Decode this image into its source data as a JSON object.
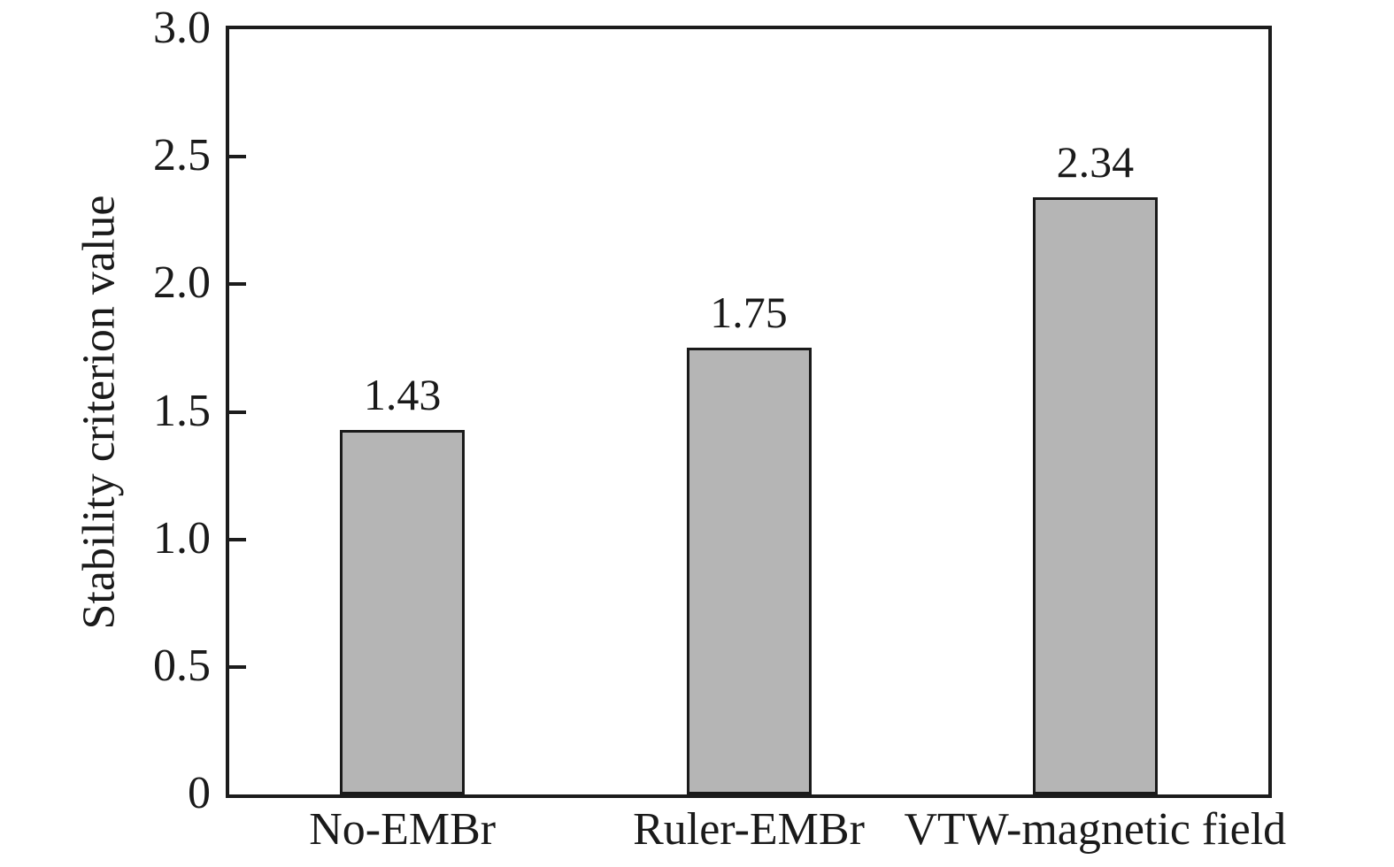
{
  "chart_data": {
    "type": "bar",
    "title": "",
    "xlabel": "",
    "ylabel": "Stability criterion value",
    "categories": [
      "No-EMBr",
      "Ruler-EMBr",
      "VTW-magnetic field"
    ],
    "values": [
      1.43,
      1.75,
      2.34
    ],
    "value_labels": [
      "1.43",
      "1.75",
      "2.34"
    ],
    "ylim": [
      0,
      3.0
    ],
    "yticks": [
      0,
      0.5,
      1.0,
      1.5,
      2.0,
      2.5,
      3.0
    ],
    "ytick_labels": [
      "0",
      "0.5",
      "1.0",
      "1.5",
      "2.0",
      "2.5",
      "3.0"
    ],
    "grid": false,
    "legend": "none",
    "bar_fill_color": "#b5b5b5",
    "bar_border_color": "#1a1a1a",
    "axis_color": "#1c1c1c",
    "background_color": "#ffffff"
  }
}
